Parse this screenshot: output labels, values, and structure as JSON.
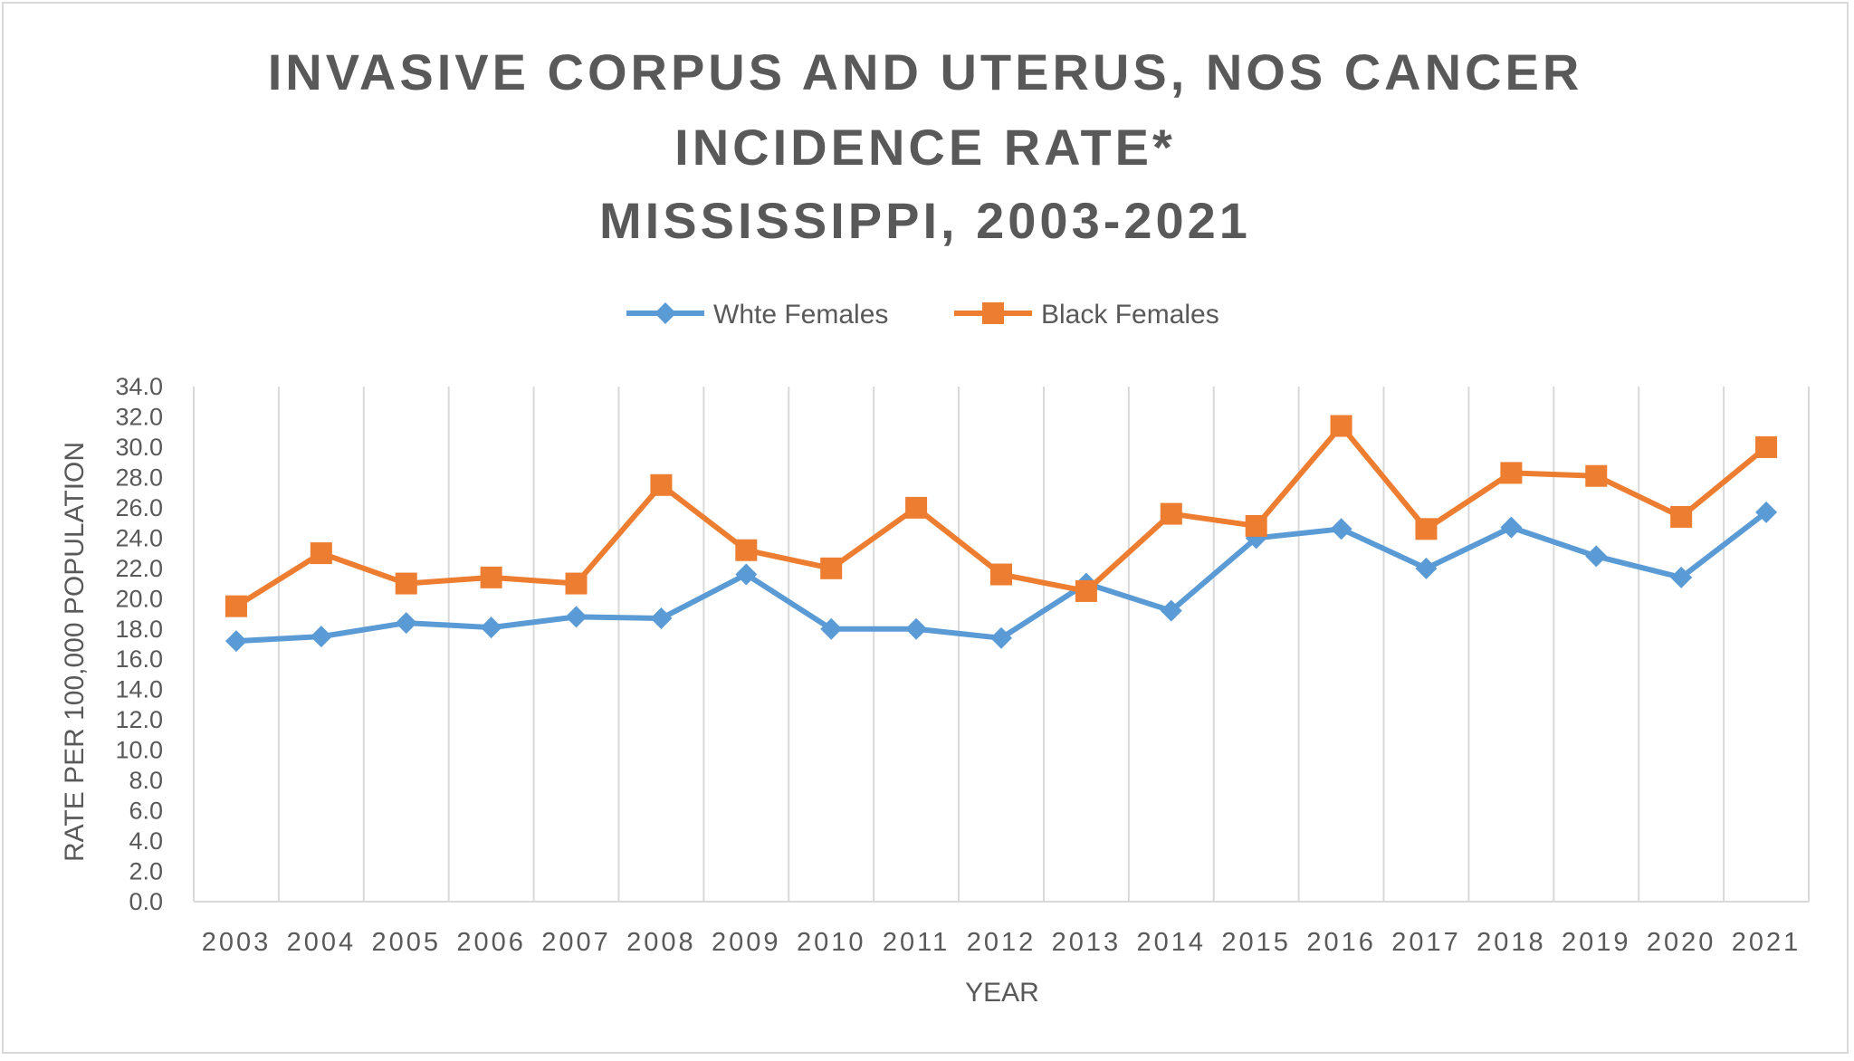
{
  "chart_data": {
    "type": "line",
    "title_lines": [
      "INVASIVE CORPUS AND UTERUS, NOS CANCER",
      "INCIDENCE RATE*",
      "MISSISSIPPI, 2003-2021"
    ],
    "xlabel": "YEAR",
    "ylabel": "RATE PER 100,000 POPULATION",
    "ylim": [
      0,
      34
    ],
    "ytick_step": 2,
    "ytick_labels": [
      "0.0",
      "2.0",
      "4.0",
      "6.0",
      "8.0",
      "10.0",
      "12.0",
      "14.0",
      "16.0",
      "18.0",
      "20.0",
      "22.0",
      "24.0",
      "26.0",
      "28.0",
      "30.0",
      "32.0",
      "34.0"
    ],
    "grid": "vertical",
    "legend_position": "top",
    "categories": [
      "2003",
      "2004",
      "2005",
      "2006",
      "2007",
      "2008",
      "2009",
      "2010",
      "2011",
      "2012",
      "2013",
      "2014",
      "2015",
      "2016",
      "2017",
      "2018",
      "2019",
      "2020",
      "2021"
    ],
    "series": [
      {
        "name": "Whte Females",
        "color": "#5b9bd5",
        "marker": "diamond",
        "values": [
          17.2,
          17.5,
          18.4,
          18.1,
          18.8,
          18.7,
          21.6,
          18.0,
          18.0,
          17.4,
          21.0,
          19.2,
          24.0,
          24.6,
          22.0,
          24.7,
          22.8,
          21.4,
          25.7
        ]
      },
      {
        "name": "Black Females",
        "color": "#ed7d31",
        "marker": "square",
        "values": [
          19.5,
          23.0,
          21.0,
          21.4,
          21.0,
          27.5,
          23.2,
          22.0,
          26.0,
          21.6,
          20.5,
          25.6,
          24.8,
          31.4,
          24.6,
          28.3,
          28.1,
          25.4,
          30.0
        ]
      }
    ]
  }
}
